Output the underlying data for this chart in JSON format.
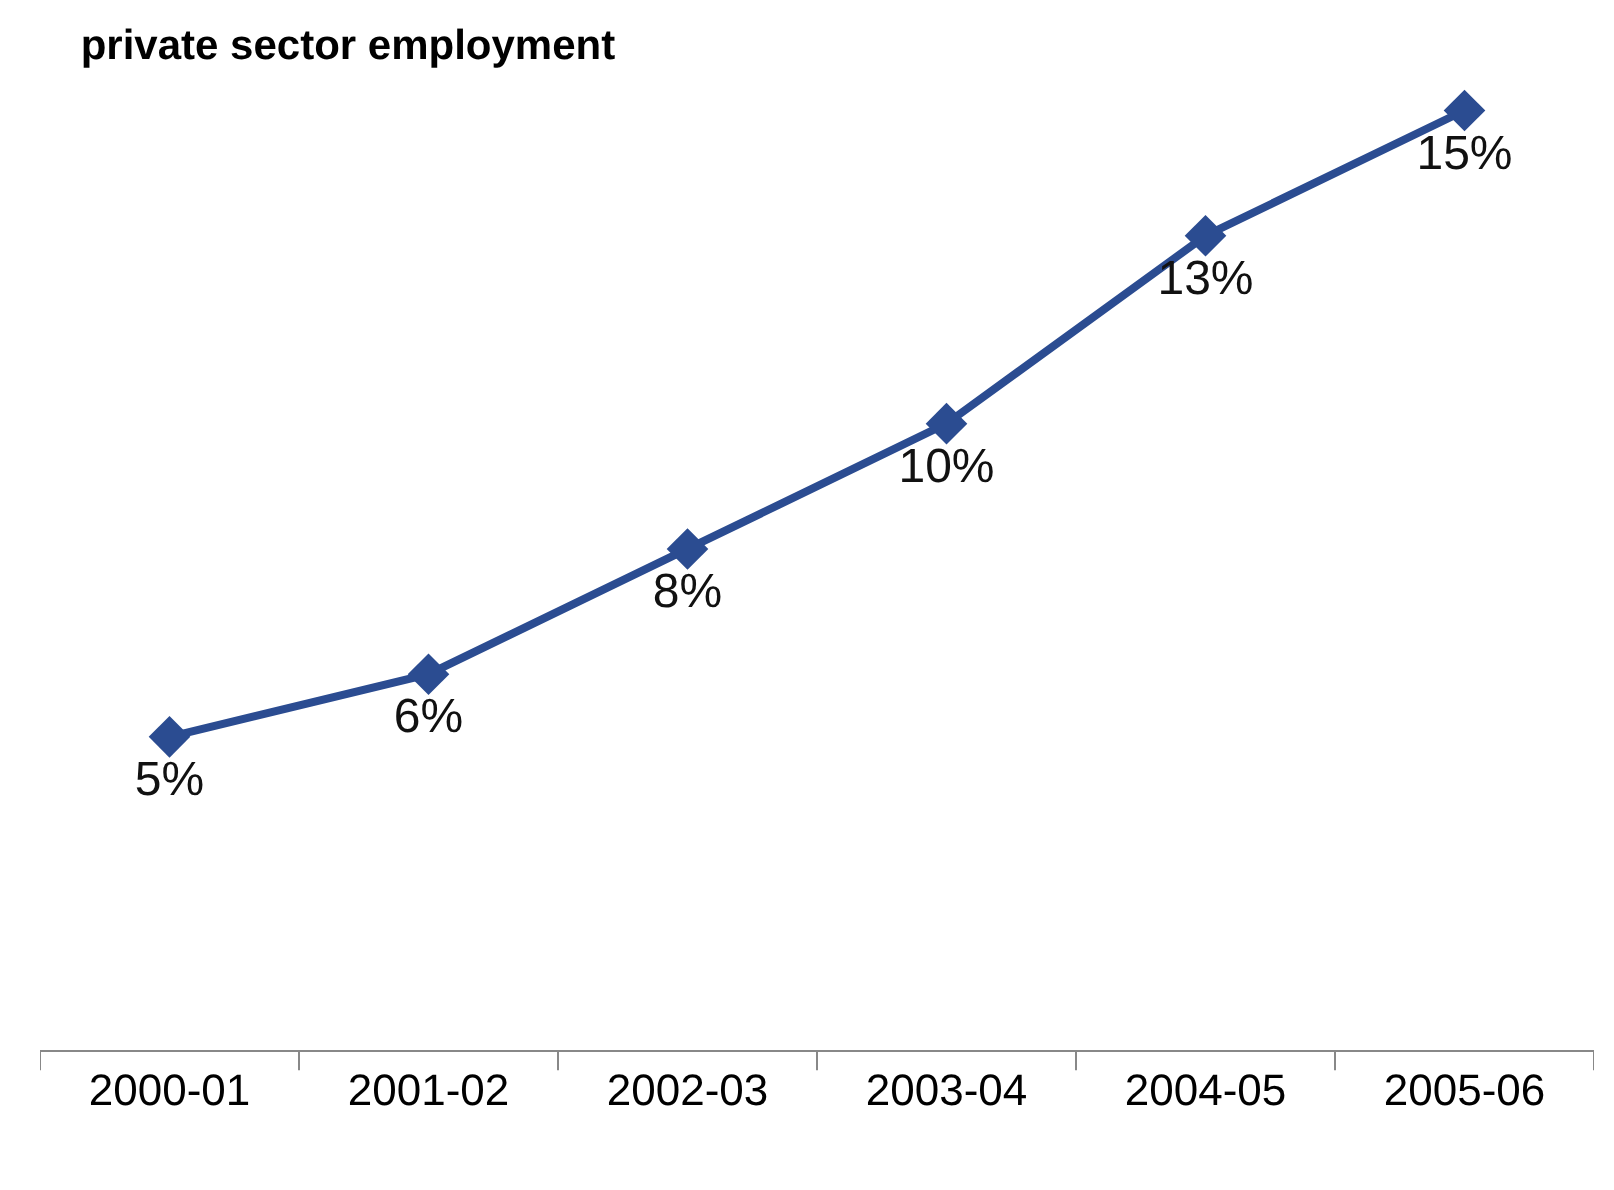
{
  "chart_data": {
    "type": "line",
    "title": "private sector employment",
    "categories": [
      "2000-01",
      "2001-02",
      "2002-03",
      "2003-04",
      "2004-05",
      "2005-06"
    ],
    "values": [
      5,
      6,
      8,
      10,
      13,
      15
    ],
    "value_labels": [
      "5%",
      "6%",
      "8%",
      "10%",
      "13%",
      "15%"
    ],
    "color": "#2b4c91",
    "marker": "diamond",
    "line_style": "solid",
    "tick_labels": "x"
  }
}
